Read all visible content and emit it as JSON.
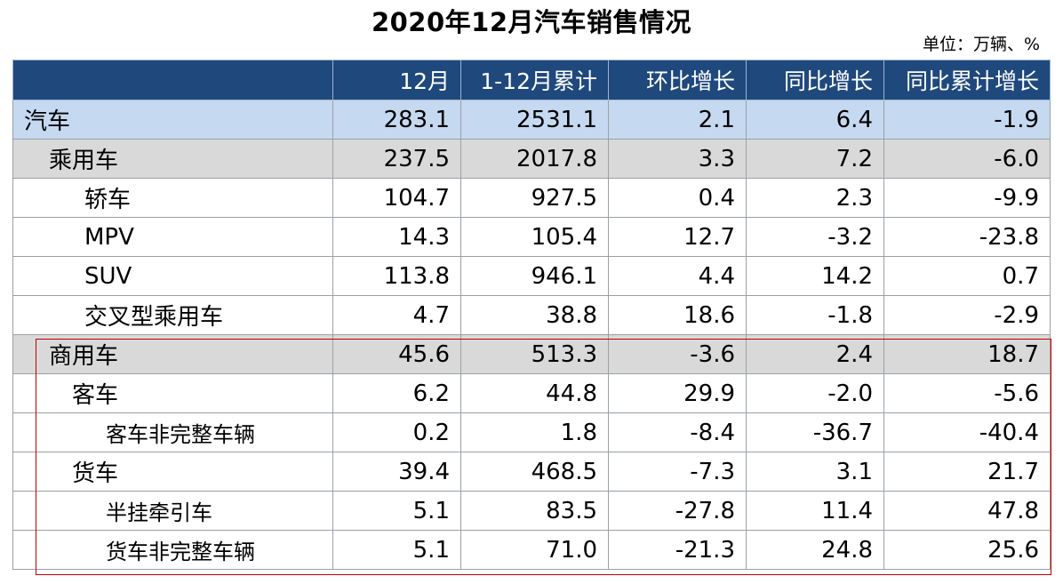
{
  "title": "2020年12月汽车销售情况",
  "unit": "单位：万辆、%",
  "headers": [
    "",
    "12月",
    "1-12月累计",
    "环比增长",
    "同比增长",
    "同比累计增长"
  ],
  "rows": [
    {
      "label": "汽车",
      "values": [
        "283.1",
        "2531.1",
        "2.1",
        "6.4",
        "-1.9"
      ]
    },
    {
      "label": "乘用车",
      "values": [
        "237.5",
        "2017.8",
        "3.3",
        "7.2",
        "-6.0"
      ]
    },
    {
      "label": "轿车",
      "values": [
        "104.7",
        "927.5",
        "0.4",
        "2.3",
        "-9.9"
      ]
    },
    {
      "label": "MPV",
      "values": [
        "14.3",
        "105.4",
        "12.7",
        "-3.2",
        "-23.8"
      ]
    },
    {
      "label": "SUV",
      "values": [
        "113.8",
        "946.1",
        "4.4",
        "14.2",
        "0.7"
      ]
    },
    {
      "label": "交叉型乘用车",
      "values": [
        "4.7",
        "38.8",
        "18.6",
        "-1.8",
        "-2.9"
      ]
    },
    {
      "label": "商用车",
      "values": [
        "45.6",
        "513.3",
        "-3.6",
        "2.4",
        "18.7"
      ]
    },
    {
      "label": "客车",
      "values": [
        "6.2",
        "44.8",
        "29.9",
        "-2.0",
        "-5.6"
      ]
    },
    {
      "label": "客车非完整车辆",
      "values": [
        "0.2",
        "1.8",
        "-8.4",
        "-36.7",
        "-40.4"
      ]
    },
    {
      "label": "货车",
      "values": [
        "39.4",
        "468.5",
        "-7.3",
        "3.1",
        "21.7"
      ]
    },
    {
      "label": "半挂牵引车",
      "values": [
        "5.1",
        "83.5",
        "-27.8",
        "11.4",
        "47.8"
      ]
    },
    {
      "label": "货车非完整车辆",
      "values": [
        "5.1",
        "71.0",
        "-21.3",
        "24.8",
        "25.6"
      ]
    }
  ],
  "colors": {
    "header_bg": "#1f497d",
    "total_row_bg": "#c5d9f1",
    "subtotal_row_bg": "#d9d9d9",
    "highlight_border": "#c00000"
  }
}
